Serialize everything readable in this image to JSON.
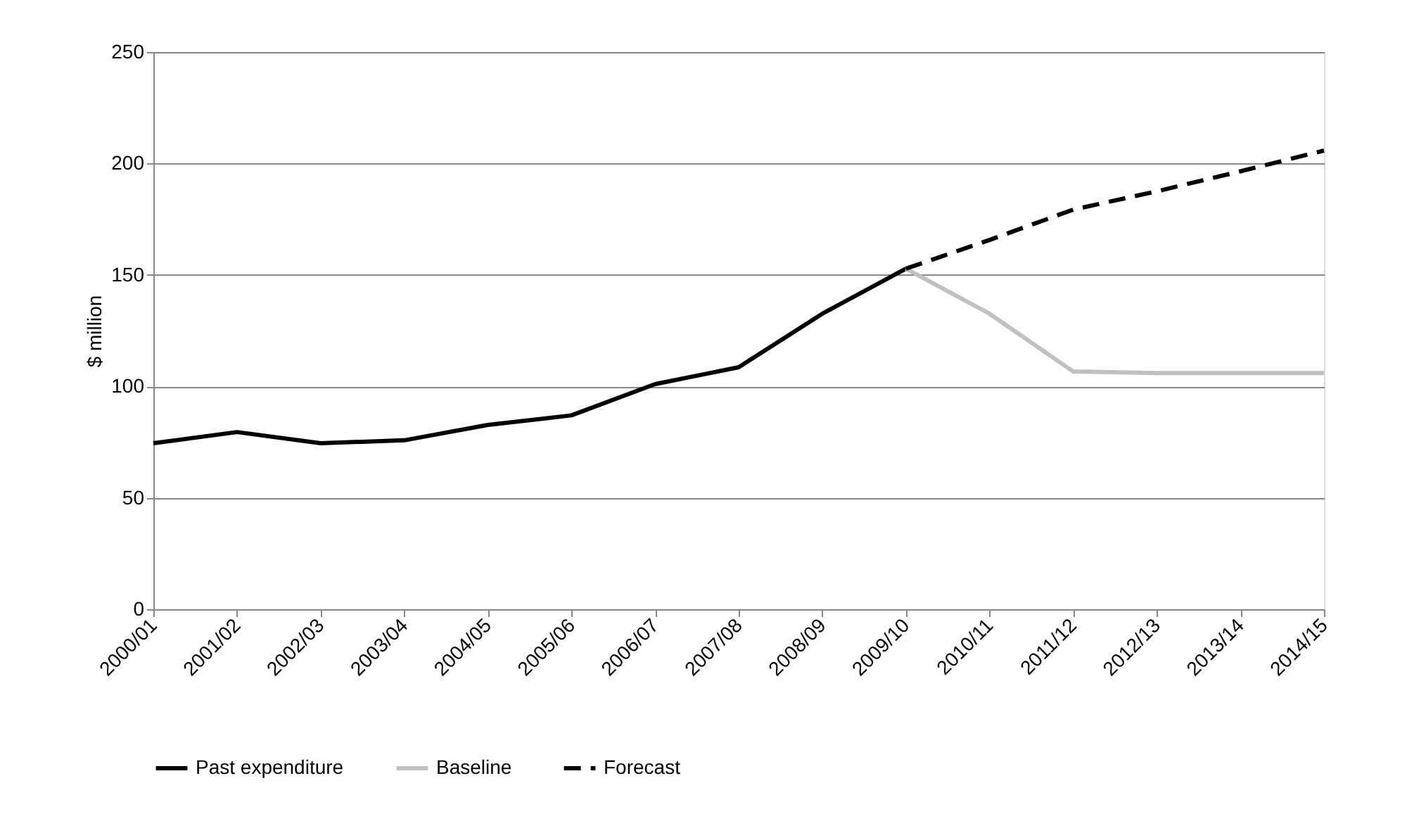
{
  "chart_data": {
    "type": "line",
    "ylabel": "$ million",
    "categories": [
      "2000/01",
      "2001/02",
      "2002/03",
      "2003/04",
      "2004/05",
      "2005/06",
      "2006/07",
      "2007/08",
      "2008/09",
      "2009/10",
      "2010/11",
      "2011/12",
      "2012/13",
      "2013/14",
      "2014/15"
    ],
    "series": [
      {
        "name": "Past expenditure",
        "color": "#000000",
        "line_style": "solid",
        "values": [
          74.5,
          79.5,
          74.5,
          75.8,
          82.7,
          87,
          101,
          108.6,
          132.6,
          152.8,
          null,
          null,
          null,
          null,
          null
        ]
      },
      {
        "name": "Baseline",
        "color": "#c0c0c0",
        "line_style": "solid",
        "values": [
          null,
          null,
          null,
          null,
          null,
          null,
          null,
          null,
          null,
          152.8,
          132.6,
          106.7,
          106,
          106,
          106
        ]
      },
      {
        "name": "Forecast",
        "color": "#000000",
        "line_style": "dashed",
        "values": [
          null,
          null,
          null,
          null,
          null,
          null,
          null,
          null,
          null,
          152.8,
          165.7,
          179.3,
          187.5,
          196.5,
          205.8
        ]
      }
    ],
    "ylim": [
      0,
      250
    ],
    "yticks": [
      0,
      50,
      100,
      150,
      200,
      250
    ],
    "grid": "y",
    "legend": "bottom",
    "marker": "none"
  }
}
